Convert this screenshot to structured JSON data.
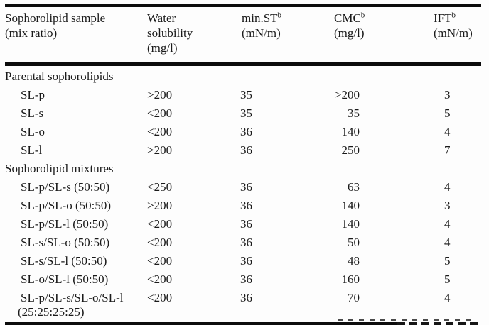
{
  "table": {
    "header": {
      "col1": {
        "line1": "Sophorolipid sample",
        "line2": "(mix ratio)"
      },
      "col2": {
        "line1": "Water",
        "line2": "solubility",
        "line3": "(mg/l)"
      },
      "col3": {
        "name": "min.ST",
        "sup": "b",
        "unit": "(mN/m)"
      },
      "col4": {
        "name": "CMC",
        "sup": "b",
        "unit": "(mg/l)"
      },
      "col5": {
        "name": "IFT",
        "sup": "b",
        "unit": "(mN/m)"
      }
    },
    "sections": [
      {
        "title": "Parental sophorolipids",
        "rows": [
          {
            "sample": "SL-p",
            "water": ">200",
            "min_st": "35",
            "cmc": ">200",
            "ift": "3"
          },
          {
            "sample": "SL-s",
            "water": "<200",
            "min_st": "35",
            "cmc": "35",
            "ift": "5"
          },
          {
            "sample": "SL-o",
            "water": "<200",
            "min_st": "36",
            "cmc": "140",
            "ift": "4"
          },
          {
            "sample": "SL-l",
            "water": ">200",
            "min_st": "36",
            "cmc": "250",
            "ift": "7"
          }
        ]
      },
      {
        "title": "Sophorolipid mixtures",
        "rows": [
          {
            "sample": "SL-p/SL-s (50:50)",
            "water": "<250",
            "min_st": "36",
            "cmc": "63",
            "ift": "4"
          },
          {
            "sample": "SL-p/SL-o (50:50)",
            "water": ">200",
            "min_st": "36",
            "cmc": "140",
            "ift": "3"
          },
          {
            "sample": "SL-p/SL-l (50:50)",
            "water": "<200",
            "min_st": "36",
            "cmc": "140",
            "ift": "4"
          },
          {
            "sample": "SL-s/SL-o (50:50)",
            "water": "<200",
            "min_st": "36",
            "cmc": "50",
            "ift": "4"
          },
          {
            "sample": "SL-s/SL-l (50:50)",
            "water": "<200",
            "min_st": "36",
            "cmc": "48",
            "ift": "5"
          },
          {
            "sample": "SL-o/SL-l (50:50)",
            "water": "<200",
            "min_st": "36",
            "cmc": "160",
            "ift": "5"
          },
          {
            "sample": "SL-p/SL-s/SL-o/SL-l",
            "sample_line2": "(25:25:25:25)",
            "water": "<200",
            "min_st": "36",
            "cmc": "70",
            "ift": "4"
          }
        ]
      }
    ]
  }
}
